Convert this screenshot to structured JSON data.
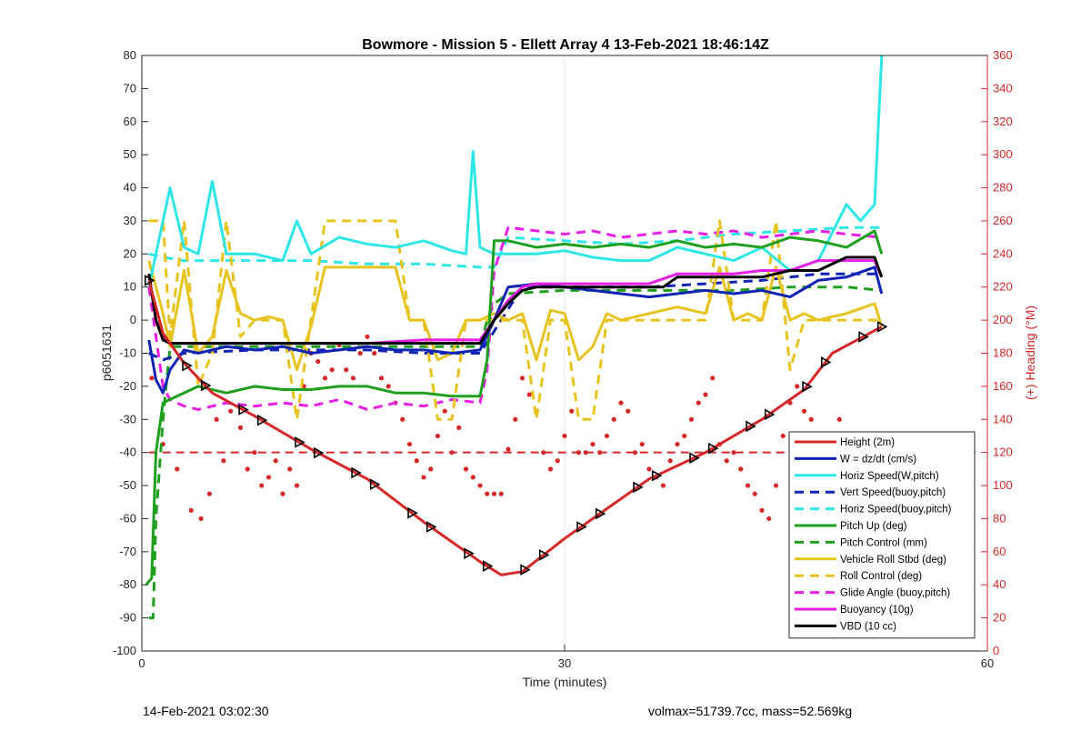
{
  "chart_data": {
    "type": "line",
    "title": "Bowmore - Mission 5 - Ellett Array 4 13-Feb-2021 18:46:14Z",
    "xlabel": "Time (minutes)",
    "ylabel": "p6051631",
    "y2label": "(+) Heading (°M)",
    "xlim": [
      0,
      60
    ],
    "ylim": [
      -100,
      80
    ],
    "y2lim": [
      0,
      360
    ],
    "xticks": [
      "0",
      "30",
      "60"
    ],
    "yticks": [
      "80",
      "70",
      "60",
      "50",
      "40",
      "30",
      "20",
      "10",
      "0",
      "-10",
      "-20",
      "-30",
      "-40",
      "-50",
      "-60",
      "-70",
      "-80",
      "-90",
      "-100"
    ],
    "y2ticks": [
      "360",
      "340",
      "320",
      "300",
      "280",
      "260",
      "240",
      "220",
      "200",
      "180",
      "160",
      "140",
      "120",
      "100",
      "80",
      "60",
      "40",
      "20",
      "0"
    ],
    "grid": "x-only",
    "legend_position": "bottom-right",
    "series": [
      {
        "name": "Height (2m)",
        "color": "#d62728",
        "style": "line",
        "x": [
          0.5,
          1.5,
          3,
          5,
          8,
          12,
          16,
          20,
          24,
          25.5,
          27,
          30,
          33,
          36,
          40,
          44,
          47,
          49,
          52.5
        ],
        "y": [
          12,
          -4,
          -13,
          -22,
          -29,
          -39,
          -48,
          -61,
          -73,
          -77,
          -76,
          -66,
          -57,
          -48,
          -40,
          -30,
          -21,
          -10,
          -2
        ]
      },
      {
        "name": "W = dz/dt (cm/s)",
        "color": "#0f24b4",
        "style": "line",
        "x": [
          0.5,
          1,
          1.5,
          2,
          3,
          4,
          6,
          8,
          10,
          12,
          14,
          16,
          18,
          20,
          22,
          24,
          25,
          26,
          28,
          30,
          32,
          34,
          36,
          38,
          40,
          42,
          44,
          46,
          48,
          50,
          52,
          52.5
        ],
        "y": [
          -6,
          -18,
          -22,
          -15,
          -9,
          -10,
          -8,
          -9,
          -8,
          -10,
          -9,
          -8,
          -9,
          -9,
          -10,
          -9,
          0,
          10,
          11,
          10,
          9,
          8,
          7,
          8,
          9,
          8,
          9,
          7,
          12,
          13,
          16,
          8
        ]
      },
      {
        "name": "Horiz Speed(W,pitch)",
        "color": "#2ee6e6",
        "style": "line",
        "x": [
          0.5,
          1,
          2,
          3,
          4,
          5,
          6,
          8,
          10,
          11,
          12,
          14,
          16,
          18,
          20,
          22,
          23,
          23.5,
          24,
          25,
          26,
          28,
          30,
          32,
          34,
          36,
          38,
          40,
          42,
          44,
          46,
          48,
          50,
          51,
          52,
          52.5
        ],
        "y": [
          10,
          20,
          40,
          22,
          20,
          42,
          20,
          20,
          18,
          30,
          20,
          25,
          23,
          22,
          24,
          21,
          20,
          51,
          22,
          20,
          20,
          20,
          21,
          19,
          18,
          18,
          22,
          20,
          18,
          22,
          15,
          18,
          35,
          30,
          35,
          80
        ]
      },
      {
        "name": "Vert Speed(buoy,pitch)",
        "color": "#0f24b4",
        "style": "dash",
        "x": [
          0.5,
          1.5,
          3,
          8,
          12,
          16,
          20,
          24,
          25.5,
          27,
          30,
          36,
          40,
          44,
          48,
          52.5
        ],
        "y": [
          -10,
          -12,
          -10,
          -9,
          -9,
          -9,
          -10,
          -10,
          0,
          10,
          10,
          10,
          11,
          12,
          14,
          14
        ]
      },
      {
        "name": "Horiz Speed(buoy,pitch)",
        "color": "#2ee6e6",
        "style": "dash",
        "x": [
          0.5,
          1.5,
          3,
          8,
          12,
          16,
          20,
          24,
          25,
          26,
          30,
          34,
          38,
          42,
          46,
          50,
          52.5
        ],
        "y": [
          20,
          19,
          18,
          18,
          18,
          17,
          17,
          16,
          16,
          25,
          24,
          23,
          24,
          26,
          27,
          28,
          28
        ]
      },
      {
        "name": "Pitch Up (deg)",
        "color": "#1ea01e",
        "style": "line",
        "x": [
          0.3,
          0.7,
          1,
          1.5,
          2,
          4,
          6,
          8,
          10,
          12,
          14,
          16,
          18,
          20,
          22,
          24,
          24.5,
          25,
          26,
          28,
          30,
          32,
          34,
          36,
          38,
          40,
          42,
          44,
          46,
          48,
          50,
          52,
          52.5
        ],
        "y": [
          -80,
          -78,
          -40,
          -25,
          -24,
          -20,
          -22,
          -20,
          -21,
          -21,
          -20,
          -20,
          -22,
          -22,
          -23,
          -23,
          -12,
          24,
          24,
          22,
          23,
          22,
          23,
          22,
          24,
          22,
          23,
          22,
          25,
          24,
          22,
          27,
          20
        ]
      },
      {
        "name": "Pitch Control (mm)",
        "color": "#1ea01e",
        "style": "dash",
        "x": [
          0.5,
          0.8,
          1,
          1.5,
          2,
          4,
          8,
          12,
          16,
          20,
          24,
          24.5,
          25,
          26,
          30,
          34,
          38,
          42,
          46,
          50,
          52.5
        ],
        "y": [
          -90,
          -90,
          -60,
          -30,
          -8,
          -8,
          -8,
          -8,
          -8,
          -8,
          -8,
          0,
          5,
          8,
          9,
          9,
          9,
          9,
          10,
          10,
          9
        ]
      },
      {
        "name": "Vehicle Roll Stbd (deg)",
        "color": "#e6c31e",
        "style": "line",
        "x": [
          0.5,
          1.5,
          2,
          3,
          4,
          5,
          6,
          7,
          8,
          9,
          10,
          11,
          12,
          13,
          14,
          16,
          18,
          19,
          20,
          21,
          22,
          23,
          24,
          25,
          26,
          27,
          28,
          29,
          30,
          31,
          32,
          33,
          34,
          36,
          38,
          40,
          41,
          42,
          43,
          44,
          45,
          46,
          47,
          48,
          50,
          52,
          52.5
        ],
        "y": [
          18,
          2,
          -8,
          15,
          -10,
          -5,
          15,
          2,
          0,
          1,
          0,
          -15,
          -2,
          16,
          16,
          16,
          16,
          0,
          0,
          -12,
          -10,
          0,
          0,
          2,
          0,
          2,
          -12,
          3,
          2,
          -12,
          -8,
          2,
          0,
          2,
          4,
          2,
          16,
          0,
          2,
          0,
          16,
          0,
          2,
          0,
          2,
          5,
          -2
        ]
      },
      {
        "name": "Roll Control (deg)",
        "color": "#e6c31e",
        "style": "dash",
        "x": [
          0.5,
          1.5,
          2,
          3,
          4,
          5,
          6,
          7,
          8,
          9,
          10,
          11,
          12,
          13,
          14,
          16,
          18,
          19,
          20,
          21,
          22,
          23,
          24,
          25,
          26,
          27,
          28,
          29,
          30,
          31,
          32,
          33,
          34,
          36,
          38,
          40,
          41,
          42,
          43,
          44,
          45,
          46,
          47,
          48,
          50,
          52,
          52.5
        ],
        "y": [
          30,
          30,
          -5,
          30,
          -20,
          -10,
          30,
          -5,
          0,
          0,
          0,
          -30,
          0,
          30,
          30,
          30,
          30,
          0,
          0,
          -30,
          -30,
          0,
          0,
          0,
          0,
          0,
          -30,
          0,
          0,
          -30,
          -30,
          0,
          0,
          0,
          0,
          0,
          30,
          0,
          0,
          0,
          30,
          -15,
          0,
          0,
          0,
          0,
          0
        ]
      },
      {
        "name": "Glide Angle (buoy,pitch)",
        "color": "#e61ee6",
        "style": "dash",
        "x": [
          0.5,
          1.5,
          2,
          3,
          4,
          6,
          8,
          10,
          12,
          14,
          16,
          18,
          20,
          22,
          24,
          24.5,
          25,
          26,
          28,
          30,
          32,
          34,
          36,
          38,
          40,
          42,
          44,
          46,
          48,
          50,
          52.5
        ],
        "y": [
          10,
          -20,
          -24,
          -26,
          -27,
          -25,
          -26,
          -25,
          -26,
          -24,
          -27,
          -25,
          -26,
          -24,
          -25,
          -15,
          15,
          28,
          27,
          26,
          27,
          25,
          26,
          27,
          26,
          27,
          25,
          26,
          27,
          26,
          25
        ]
      },
      {
        "name": "Buoyancy (10g)",
        "color": "#e61ee6",
        "style": "line",
        "x": [
          0.5,
          1,
          1.5,
          2,
          4,
          8,
          12,
          16,
          20,
          24,
          25,
          26,
          27,
          28,
          30,
          32,
          34,
          36,
          38,
          40,
          42,
          44,
          46,
          48,
          50,
          52,
          52.5
        ],
        "y": [
          14,
          0,
          -5,
          -7,
          -7,
          -7,
          -7,
          -7,
          -6,
          -6,
          0,
          6,
          10,
          11,
          11,
          11,
          11,
          11,
          14,
          14,
          14,
          15,
          15,
          18,
          18,
          18,
          13
        ]
      },
      {
        "name": "VBD (10 cc)",
        "color": "#000000",
        "style": "line",
        "x": [
          0.5,
          1,
          1.5,
          2,
          4,
          8,
          12,
          16,
          20,
          24,
          25,
          26,
          27,
          28,
          30,
          32,
          34,
          36,
          37,
          38,
          40,
          42,
          44,
          46,
          48,
          50,
          52,
          52.5
        ],
        "y": [
          14,
          0,
          -6,
          -7,
          -7,
          -7,
          -7,
          -7,
          -7,
          -7,
          0,
          5,
          9,
          10,
          10,
          10,
          10,
          10,
          10,
          13,
          13,
          13,
          13,
          15,
          15,
          19,
          19,
          13
        ]
      },
      {
        "name": "Heading",
        "color": "#d62728",
        "style": "dots",
        "x": [
          0.7,
          1.5,
          2.5,
          3.5,
          4.2,
          4.8,
          5.3,
          5.8,
          6.3,
          7,
          7.5,
          8,
          8.5,
          9,
          9.5,
          10,
          10.5,
          11,
          11.5,
          12,
          12.5,
          13,
          13.5,
          14,
          14.5,
          15,
          15.5,
          16,
          16.5,
          17,
          17.5,
          18,
          18.5,
          19,
          19.5,
          20,
          20.5,
          21,
          21.5,
          22,
          22.5,
          23,
          23.5,
          24,
          24.5,
          25,
          25.5,
          26,
          26.5,
          27,
          27.5,
          28,
          28.5,
          29,
          29.5,
          30,
          30.5,
          31,
          31.5,
          32,
          32.5,
          33,
          33.5,
          34,
          34.5,
          35,
          35.5,
          36,
          36.5,
          37,
          37.5,
          38,
          38.5,
          39,
          39.5,
          40,
          40.5,
          41,
          41.5,
          42,
          42.5,
          43,
          43.5,
          44,
          44.5,
          45,
          45.5,
          46,
          46.5,
          47,
          47.5,
          48,
          48.5,
          49,
          49.5,
          50,
          50.5,
          51
        ],
        "y": [
          165,
          125,
          110,
          85,
          80,
          95,
          140,
          115,
          145,
          135,
          110,
          120,
          100,
          105,
          115,
          95,
          110,
          100,
          160,
          180,
          175,
          165,
          170,
          185,
          170,
          165,
          180,
          190,
          180,
          165,
          160,
          150,
          140,
          125,
          115,
          105,
          110,
          130,
          145,
          120,
          135,
          110,
          105,
          100,
          95,
          95,
          95,
          122,
          140,
          165,
          155,
          145,
          120,
          110,
          115,
          130,
          145,
          120,
          120,
          125,
          120,
          130,
          140,
          150,
          145,
          120,
          125,
          110,
          105,
          100,
          115,
          125,
          130,
          140,
          150,
          155,
          165,
          125,
          115,
          120,
          110,
          100,
          95,
          85,
          80,
          100,
          130,
          150,
          160,
          145,
          140,
          120,
          115,
          130,
          140,
          125,
          120,
          110
        ]
      }
    ]
  },
  "footer": {
    "timestamp": "14-Feb-2021 03:02:30",
    "volmax": "volmax=51739.7cc, mass=52.569kg"
  }
}
